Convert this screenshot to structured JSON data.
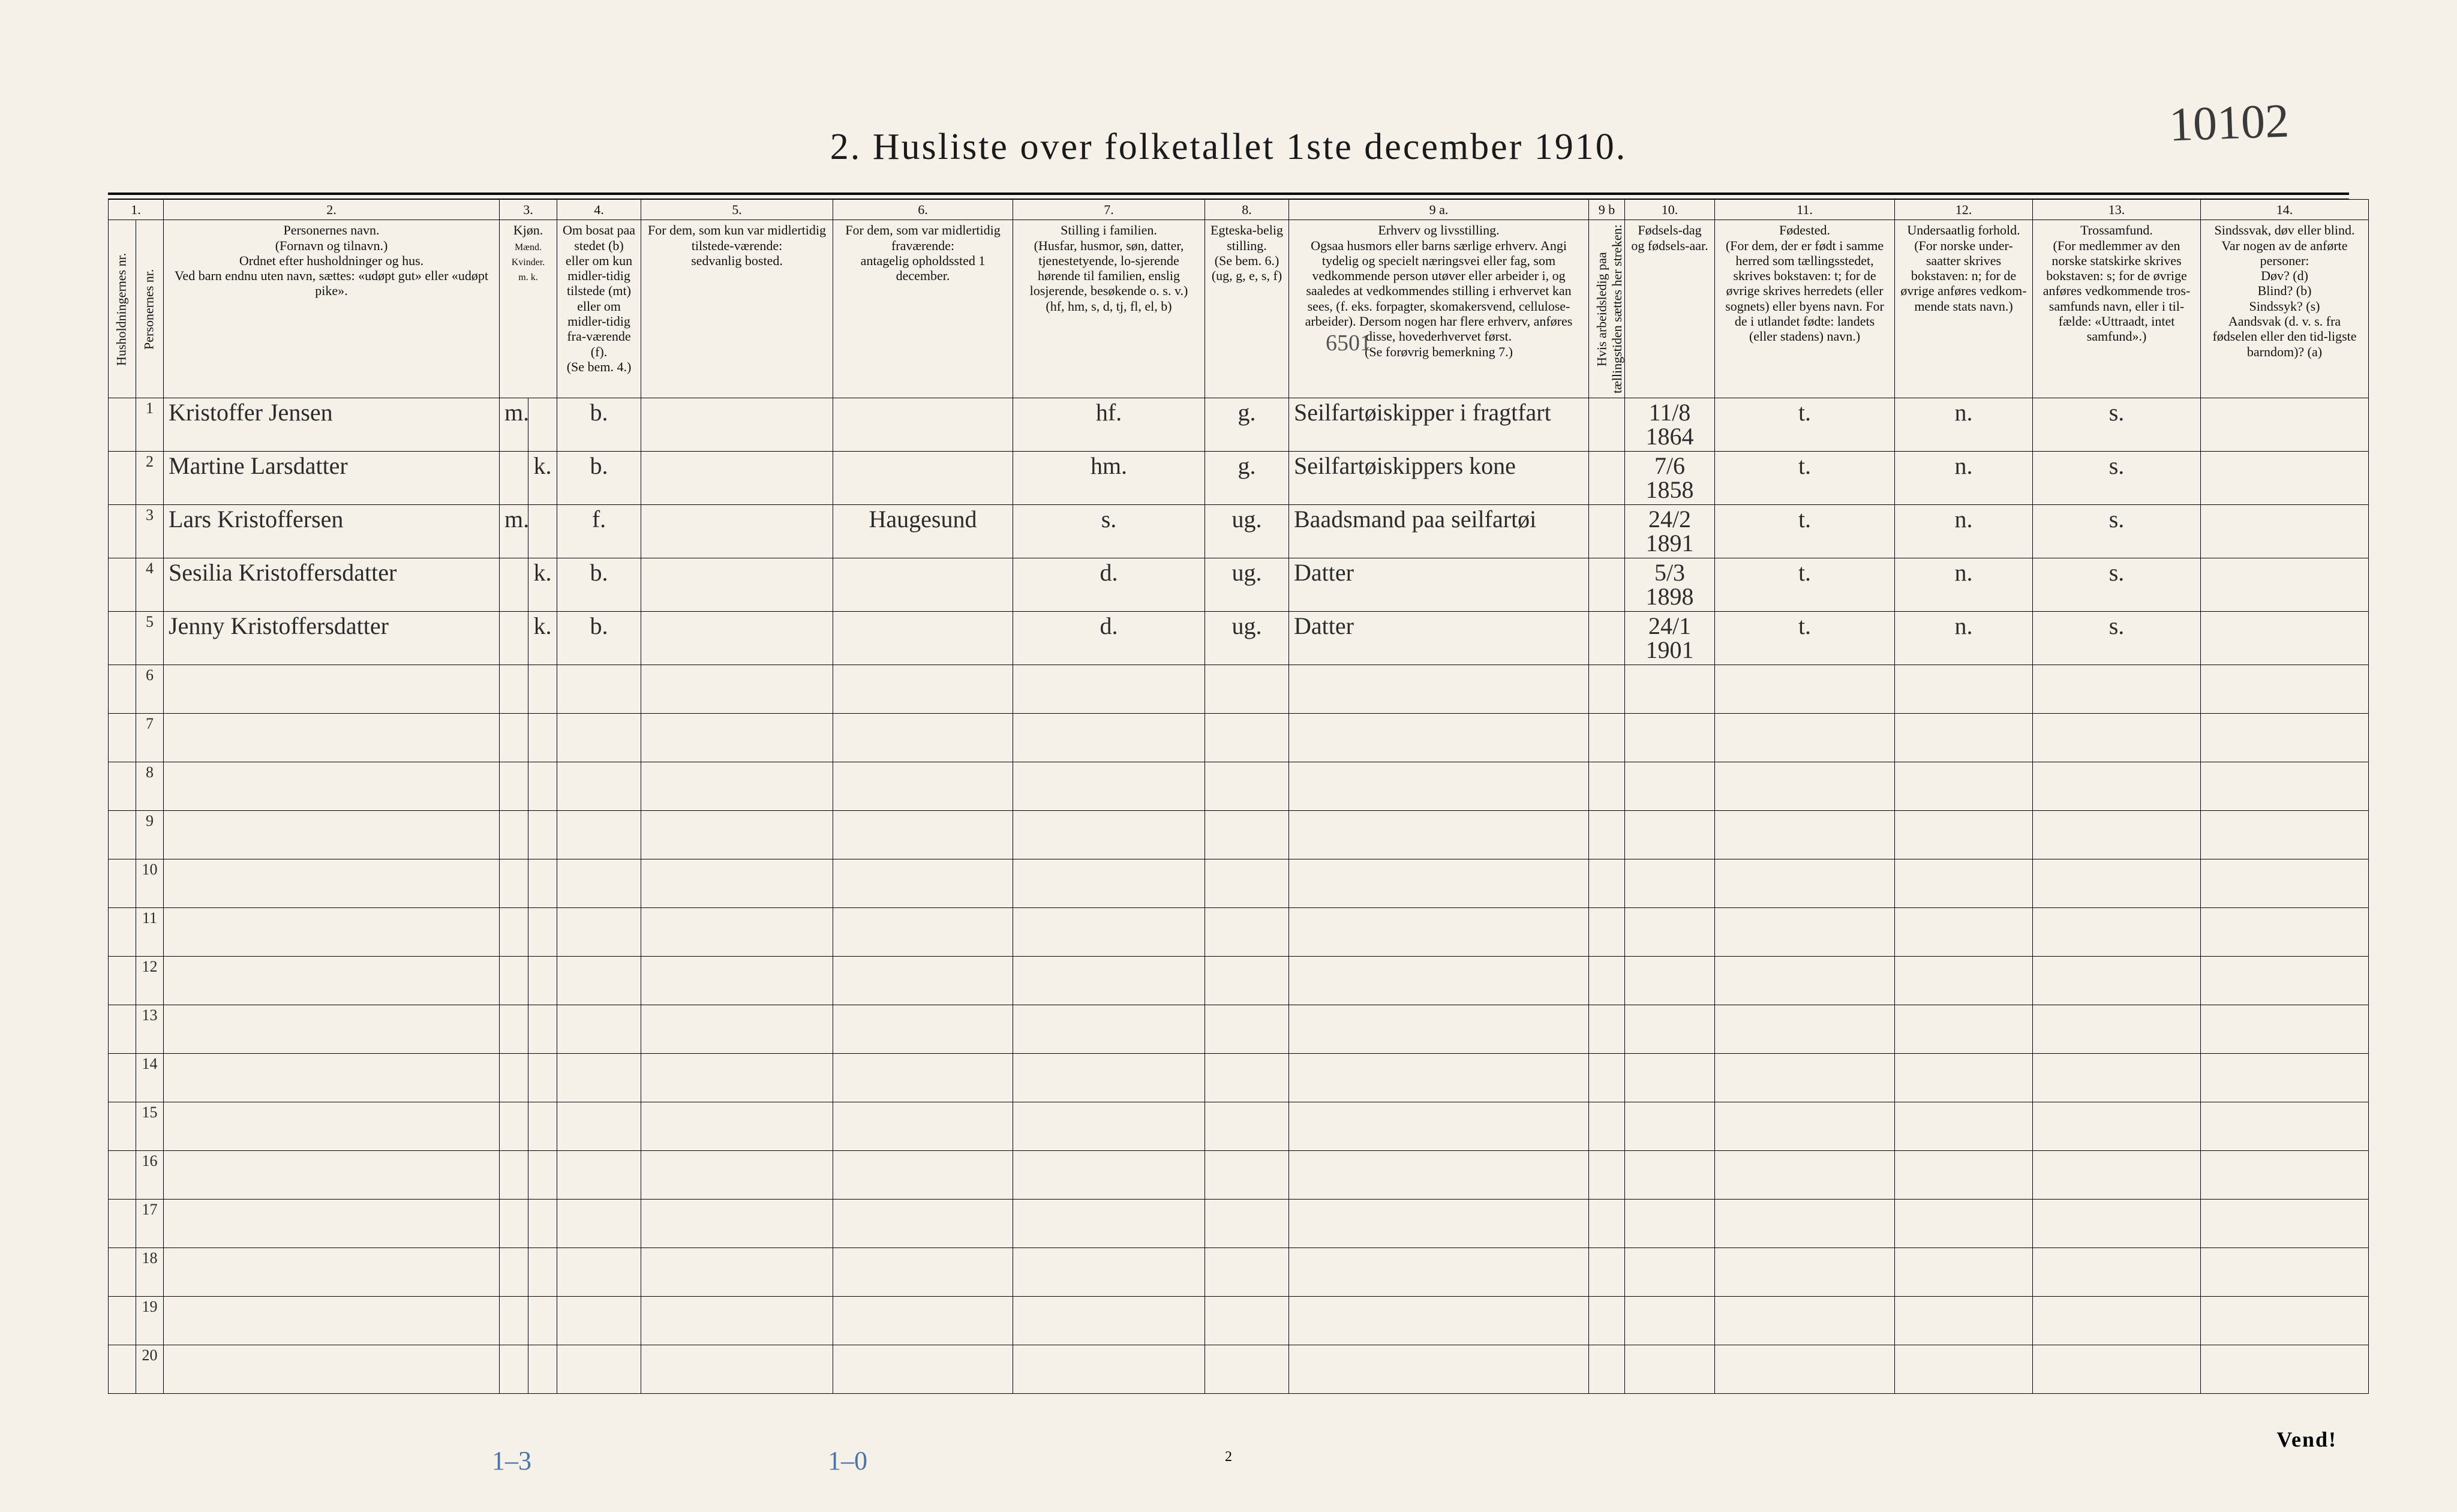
{
  "page": {
    "title": "2.  Husliste over folketallet 1ste december 1910.",
    "top_handwritten": "10102",
    "hh_margin": "1.",
    "code_above_row1": "6501",
    "page_number_bottom": "2",
    "vend": "Vend!",
    "foot_a": "1–3",
    "foot_b": "1–0"
  },
  "columns": {
    "numbers": [
      "1.",
      "2.",
      "3.",
      "4.",
      "5.",
      "6.",
      "7.",
      "8.",
      "9 a.",
      "9 b",
      "10.",
      "11.",
      "12.",
      "13.",
      "14."
    ],
    "h": {
      "c1a": "Husholdningernes nr.",
      "c1b": "Personernes nr.",
      "c2": "Personernes navn.\n(Fornavn og tilnavn.)\nOrdnet efter husholdninger og hus.\nVed barn endnu uten navn, sættes: «udøpt gut» eller «udøpt pike».",
      "c3": "Kjøn.",
      "c3sub": "Mænd.  Kvinder.\nm.   k.",
      "c4": "Om bosat paa stedet (b) eller om kun midler-tidig tilstede (mt) eller om midler-tidig fra-værende (f).\n(Se bem. 4.)",
      "c5": "For dem, som kun var midlertidig tilstede-værende:\nsedvanlig bosted.",
      "c6": "For dem, som var midlertidig fraværende:\nantagelig opholdssted 1 december.",
      "c7": "Stilling i familien.\n(Husfar, husmor, søn, datter, tjenestetyende, lo-sjerende hørende til familien, enslig losjerende, besøkende o. s. v.)\n(hf, hm, s, d, tj, fl, el, b)",
      "c8": "Egteska-belig stilling.\n(Se bem. 6.)\n(ug, g, e, s, f)",
      "c9a": "Erhverv og livsstilling.\nOgsaa husmors eller barns særlige erhverv. Angi tydelig og specielt næringsvei eller fag, som vedkommende person utøver eller arbeider i, og saaledes at vedkommendes stilling i erhvervet kan sees, (f. eks. forpagter, skomakersvend, cellulose-arbeider). Dersom nogen har flere erhverv, anføres disse, hovederhvervet først.\n(Se forøvrig bemerkning 7.)",
      "c9b": "Hvis arbeidsledig paa tællingstiden sættes her streken: |",
      "c10": "Fødsels-dag og fødsels-aar.",
      "c11": "Fødested.\n(For dem, der er født i samme herred som tællingsstedet, skrives bokstaven: t; for de øvrige skrives herredets (eller sognets) eller byens navn. For de i utlandet fødte: landets (eller stadens) navn.)",
      "c12": "Undersaatlig forhold.\n(For norske under-saatter skrives bokstaven: n; for de øvrige anføres vedkom-mende stats navn.)",
      "c13": "Trossamfund.\n(For medlemmer av den norske statskirke skrives bokstaven: s; for de øvrige anføres vedkommende tros-samfunds navn, eller i til-fælde: «Uttraadt, intet samfund».)",
      "c14": "Sindssvak, døv eller blind.\nVar nogen av de anførte personer:\nDøv?   (d)\nBlind?  (b)\nSindssyk? (s)\nAandsvak (d. v. s. fra fødselen eller den tid-ligste barndom)? (a)"
    }
  },
  "rows": [
    {
      "n": "1",
      "name": "Kristoffer Jensen",
      "m": "m.",
      "k": "",
      "res": "b.",
      "c5": "",
      "c6": "",
      "fam": "hf.",
      "civ": "g.",
      "occ": "Seilfartøiskipper i fragtfart",
      "c9b": "",
      "dob": "11/8 1864",
      "born": "t.",
      "nat": "n.",
      "rel": "s.",
      "c14": ""
    },
    {
      "n": "2",
      "name": "Martine Larsdatter",
      "m": "",
      "k": "k.",
      "res": "b.",
      "c5": "",
      "c6": "",
      "fam": "hm.",
      "civ": "g.",
      "occ": "Seilfartøiskippers kone",
      "c9b": "",
      "dob": "7/6 1858",
      "born": "t.",
      "nat": "n.",
      "rel": "s.",
      "c14": ""
    },
    {
      "n": "3",
      "name": "Lars Kristoffersen",
      "m": "m.",
      "k": "",
      "res": "f.",
      "c5": "",
      "c6": "Haugesund",
      "fam": "s.",
      "civ": "ug.",
      "occ": "Baadsmand paa seilfartøi",
      "c9b": "",
      "dob": "24/2 1891",
      "born": "t.",
      "nat": "n.",
      "rel": "s.",
      "c14": ""
    },
    {
      "n": "4",
      "name": "Sesilia Kristoffersdatter",
      "m": "",
      "k": "k.",
      "res": "b.",
      "c5": "",
      "c6": "",
      "fam": "d.",
      "civ": "ug.",
      "occ": "Datter",
      "c9b": "",
      "dob": "5/3 1898",
      "born": "t.",
      "nat": "n.",
      "rel": "s.",
      "c14": ""
    },
    {
      "n": "5",
      "name": "Jenny Kristoffersdatter",
      "m": "",
      "k": "k.",
      "res": "b.",
      "c5": "",
      "c6": "",
      "fam": "d.",
      "civ": "ug.",
      "occ": "Datter",
      "c9b": "",
      "dob": "24/1 1901",
      "born": "t.",
      "nat": "n.",
      "rel": "s.",
      "c14": ""
    },
    {
      "n": "6"
    },
    {
      "n": "7"
    },
    {
      "n": "8"
    },
    {
      "n": "9"
    },
    {
      "n": "10"
    },
    {
      "n": "11"
    },
    {
      "n": "12"
    },
    {
      "n": "13"
    },
    {
      "n": "14"
    },
    {
      "n": "15"
    },
    {
      "n": "16"
    },
    {
      "n": "17"
    },
    {
      "n": "18"
    },
    {
      "n": "19"
    },
    {
      "n": "20"
    }
  ]
}
